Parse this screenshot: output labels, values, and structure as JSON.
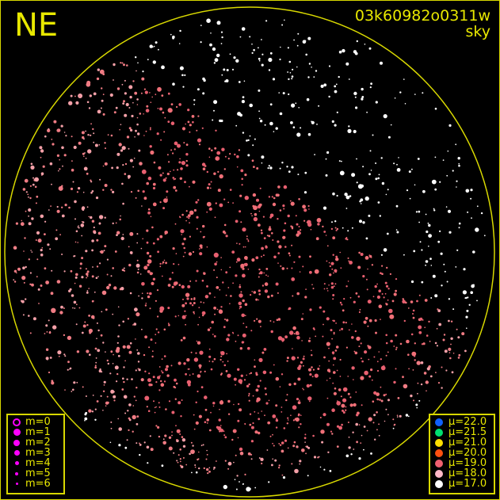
{
  "header": {
    "direction": "NE",
    "frame_id": "03k60982o0311w",
    "subtitle": "sky"
  },
  "chart_data": {
    "type": "scatter",
    "title": "03k60982o0311w",
    "subtitle": "sky",
    "projection": "all-sky circle",
    "orientation_label": "NE",
    "colors": {
      "frame": "#d8d800",
      "background": "#000000"
    },
    "magnitude_legend": [
      {
        "label": "m=0",
        "style": "ring"
      },
      {
        "label": "m=1"
      },
      {
        "label": "m=2"
      },
      {
        "label": "m=3"
      },
      {
        "label": "m=4"
      },
      {
        "label": "m=5"
      },
      {
        "label": "m=6"
      }
    ],
    "magnitude_legend_color": "#ff00ff",
    "sky_brightness_legend": [
      {
        "label": "μ=22.0",
        "color": "#1060ff"
      },
      {
        "label": "μ=21.5",
        "color": "#00e070"
      },
      {
        "label": "μ=21.0",
        "color": "#ffe000"
      },
      {
        "label": "μ=20.0",
        "color": "#ff5010"
      },
      {
        "label": "μ=19.0",
        "color": "#f06070"
      },
      {
        "label": "μ=18.0",
        "color": "#ffb8c8"
      },
      {
        "label": "μ=17.0",
        "color": "#ffffff"
      }
    ]
  }
}
